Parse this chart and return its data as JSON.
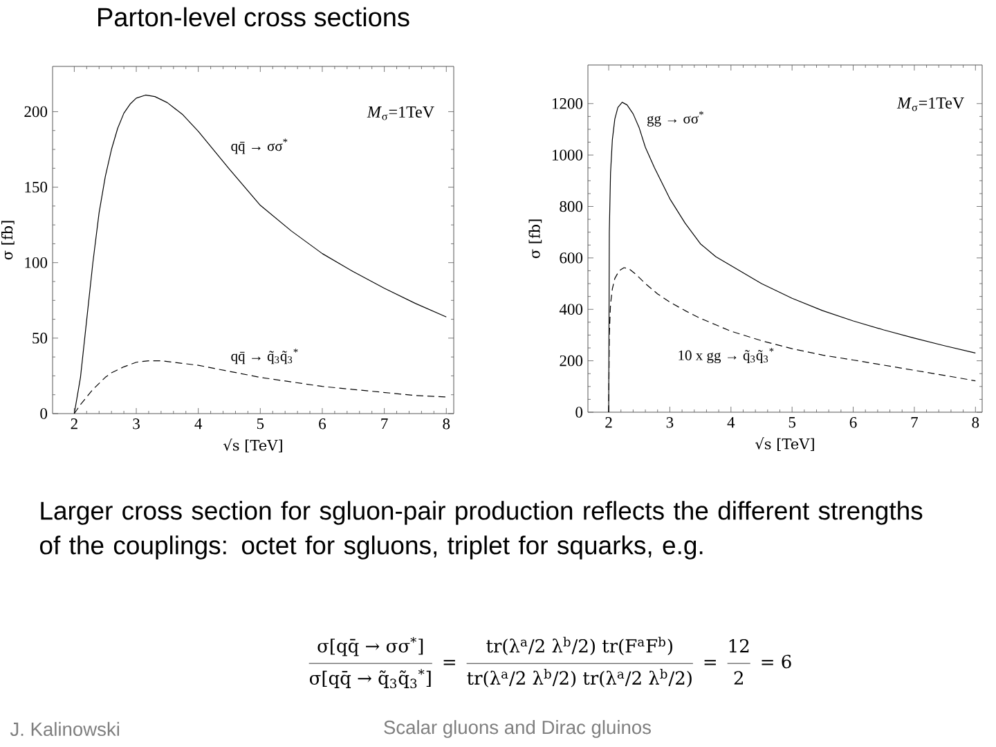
{
  "chart_data": [
    {
      "type": "line",
      "title": "Parton-level cross sections",
      "xlabel": "√s [TeV]",
      "ylabel": "σ [fb]",
      "xlim": [
        1.65,
        8.12
      ],
      "ylim": [
        0,
        230
      ],
      "xticks": [
        2,
        3,
        4,
        5,
        6,
        7,
        8
      ],
      "yticks": [
        0,
        50,
        100,
        150,
        200
      ],
      "annotations": [
        "*M*$_{σ}$=1TeV"
      ],
      "series": [
        {
          "name": "qq̄ → σσ$^{*}$",
          "color": "#000000",
          "line_style": "solid",
          "x": [
            2.0,
            2.05,
            2.1,
            2.2,
            2.3,
            2.4,
            2.5,
            2.6,
            2.7,
            2.8,
            2.9,
            3.0,
            3.15,
            3.3,
            3.5,
            3.75,
            4.0,
            4.5,
            5.0,
            5.5,
            6.0,
            6.5,
            7.0,
            7.5,
            8.0
          ],
          "values": [
            0,
            12,
            24,
            62,
            100,
            133,
            157,
            175,
            189,
            199,
            205,
            209,
            211,
            210,
            206,
            198,
            187,
            162,
            138,
            121,
            106,
            94,
            83,
            73,
            64
          ]
        },
        {
          "name": "qq̄ → q̃$_{3}$q̃$_{3}$$^{*}$",
          "color": "#000000",
          "line_style": "dashed",
          "x": [
            2.0,
            2.1,
            2.2,
            2.3,
            2.4,
            2.5,
            2.6,
            2.8,
            3.0,
            3.2,
            3.4,
            3.6,
            3.8,
            4.0,
            4.5,
            5.0,
            5.5,
            6.0,
            6.5,
            7.0,
            7.5,
            8.0
          ],
          "values": [
            0,
            6,
            11,
            16,
            20,
            24,
            27,
            31,
            34,
            35,
            35,
            34,
            33,
            32,
            28,
            24,
            21,
            18,
            16,
            14,
            12,
            11
          ]
        }
      ]
    },
    {
      "type": "line",
      "xlabel": "√s [TeV]",
      "ylabel": "σ [fb]",
      "xlim": [
        1.66,
        8.11
      ],
      "ylim": [
        0,
        1350
      ],
      "xticks": [
        2,
        3,
        4,
        5,
        6,
        7,
        8
      ],
      "yticks": [
        0,
        200,
        400,
        600,
        800,
        1000,
        1200
      ],
      "annotations": [
        "*M*$_{σ}$=1TeV"
      ],
      "series": [
        {
          "name": "gg → σσ$^{*}$",
          "color": "#000000",
          "line_style": "solid",
          "x": [
            2.0,
            2.01,
            2.03,
            2.06,
            2.1,
            2.15,
            2.22,
            2.3,
            2.4,
            2.5,
            2.6,
            2.75,
            3.0,
            3.25,
            3.5,
            3.75,
            4.0,
            4.5,
            5.0,
            5.5,
            6.0,
            6.5,
            7.0,
            7.5,
            8.0
          ],
          "values": [
            0,
            700,
            930,
            1060,
            1140,
            1185,
            1205,
            1195,
            1160,
            1105,
            1030,
            950,
            830,
            735,
            655,
            605,
            570,
            500,
            443,
            395,
            355,
            320,
            288,
            258,
            230
          ]
        },
        {
          "name": "10 x gg → q̃$_{3}$q̃$_{3}$$^{*}$",
          "color": "#000000",
          "line_style": "dashed",
          "x": [
            2.0,
            2.01,
            2.03,
            2.06,
            2.1,
            2.17,
            2.25,
            2.33,
            2.45,
            2.6,
            2.8,
            3.0,
            3.25,
            3.5,
            3.75,
            4.0,
            4.5,
            5.0,
            5.5,
            6.0,
            6.5,
            7.0,
            7.5,
            8.0
          ],
          "values": [
            0,
            300,
            420,
            480,
            520,
            550,
            562,
            558,
            535,
            500,
            460,
            428,
            395,
            365,
            340,
            315,
            278,
            247,
            222,
            203,
            183,
            163,
            143,
            122
          ]
        }
      ]
    },
    {
      "type": "other",
      "annotations": [
        "Larger cross section for sgluon-pair production reflects the different strengths of the couplings: octet for sgluons, triplet for squarks, e.g.",
        "σ[qq̄ → σσ$^{*}$]",
        "σ[qq̄ → q̃$_{3}$q̃$_{3}$$^{*}$]",
        "=",
        "tr(λ$^{a}$/2 λ$^{b}$/2) tr(F$^{a}$F$^{b}$)",
        "tr(λ$^{a}$/2 λ$^{b}$/2) tr(λ$^{a}$/2 λ$^{b}$/2)",
        "=",
        "12",
        "2",
        "= 6",
        "J. Kalinowski",
        "Scalar gluons and Dirac gluinos"
      ]
    }
  ]
}
